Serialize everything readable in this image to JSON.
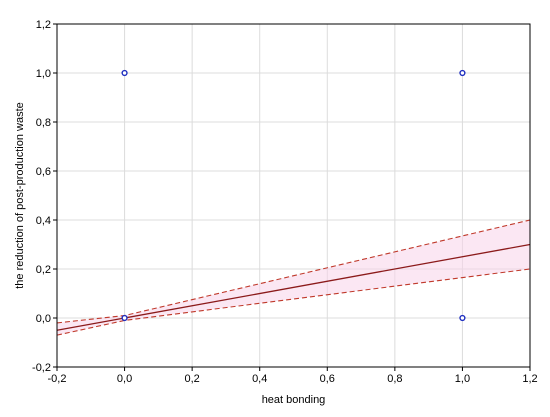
{
  "chart_data": {
    "type": "scatter",
    "title": "",
    "xlabel": "heat bonding",
    "ylabel": "the reduction of post-production waste",
    "xlim": [
      -0.2,
      1.2
    ],
    "ylim": [
      -0.2,
      1.2
    ],
    "x_ticks": [
      "-0,2",
      "0,0",
      "0,2",
      "0,4",
      "0,6",
      "0,8",
      "1,0",
      "1,2"
    ],
    "y_ticks": [
      "-0,2",
      "0,0",
      "0,2",
      "0,4",
      "0,6",
      "0,8",
      "1,0",
      "1,2"
    ],
    "grid": true,
    "points": [
      {
        "x": 0.0,
        "y": 1.0
      },
      {
        "x": 1.0,
        "y": 1.0
      },
      {
        "x": 0.0,
        "y": 0.0
      },
      {
        "x": 1.0,
        "y": 0.0
      }
    ],
    "regression": {
      "slope": 0.25,
      "intercept": 0.0
    },
    "confidence_upper": [
      {
        "x": -0.2,
        "y": -0.02
      },
      {
        "x": 0.0,
        "y": 0.01
      },
      {
        "x": 1.2,
        "y": 0.4
      }
    ],
    "confidence_lower": [
      {
        "x": -0.2,
        "y": -0.07
      },
      {
        "x": 0.0,
        "y": -0.01
      },
      {
        "x": 1.2,
        "y": 0.2
      }
    ],
    "colors": {
      "point": "#1f2fc0",
      "fit_line": "#8b1a1a",
      "band": "#c0392b",
      "band_shade": "#f7d4ea",
      "grid": "#dcdcdc"
    }
  }
}
